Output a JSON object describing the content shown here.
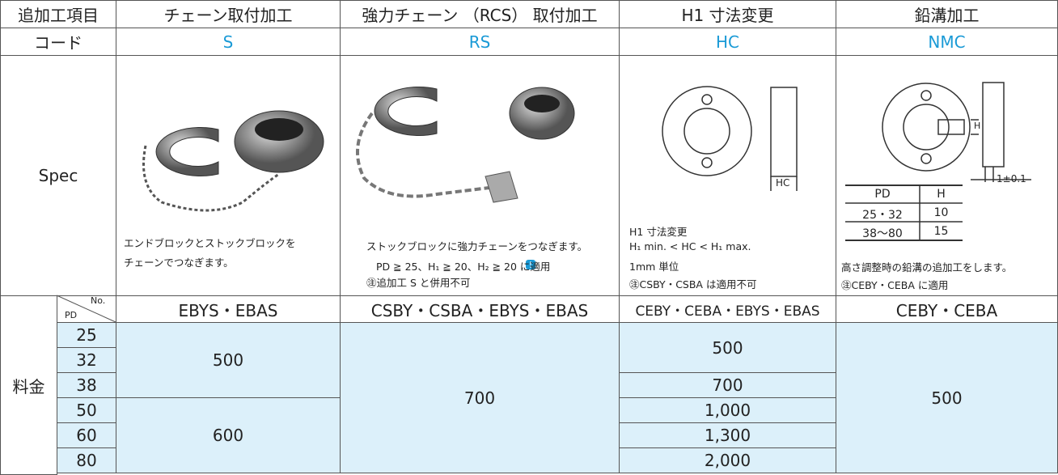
{
  "header": {
    "item": "追加工項目",
    "columns": [
      "チェーン取付加工",
      "強力チェーン （RCS） 取付加工",
      "H1 寸法変更",
      "鉛溝加工"
    ]
  },
  "code": {
    "label": "コード",
    "values": [
      "S",
      "RS",
      "HC",
      "NMC"
    ]
  },
  "spec": {
    "label": "Spec",
    "s": [
      "エンドブロックとストックブロックを",
      "チェーンでつなぎます。"
    ],
    "rs": {
      "description": "ストックブロックに強力チェーンをつなぎます。",
      "condition": "PD ≧ 25、H₁ ≧ 20、H₂ ≧ 20 に適用",
      "note": "㊟追加工 S と併用不可"
    },
    "hc": {
      "lines": [
        "H1 寸法変更",
        "H₁ min. < HC < H₁ max.",
        "1mm 単位",
        "㊟CSBY・CSBA は適用不可"
      ],
      "dimension": "HC"
    },
    "nmc": {
      "dimension_h": "H",
      "dimension_w": "1±0.1",
      "table": {
        "header": [
          "PD",
          "H"
        ],
        "rows": [
          [
            "25・32",
            "10"
          ],
          [
            "38～80",
            "15"
          ]
        ]
      },
      "lines": [
        "高さ調整時の鉛溝の追加工をします。",
        "㊟CEBY・CEBA に適用"
      ]
    }
  },
  "price": {
    "label": "料金",
    "corner_no": "No.",
    "corner_pd": "PD",
    "models": [
      "EBYS・EBAS",
      "CSBY・CSBA・EBYS・EBAS",
      "CEBY・CEBA・EBYS・EBAS",
      "CEBY・CEBA"
    ],
    "pd": [
      "25",
      "32",
      "38",
      "50",
      "60",
      "80"
    ],
    "s": [
      "500",
      "600"
    ],
    "rs": [
      "700"
    ],
    "hc": [
      "500",
      "700",
      "1,000",
      "1,300",
      "2,000"
    ],
    "nmc": [
      "500"
    ]
  }
}
